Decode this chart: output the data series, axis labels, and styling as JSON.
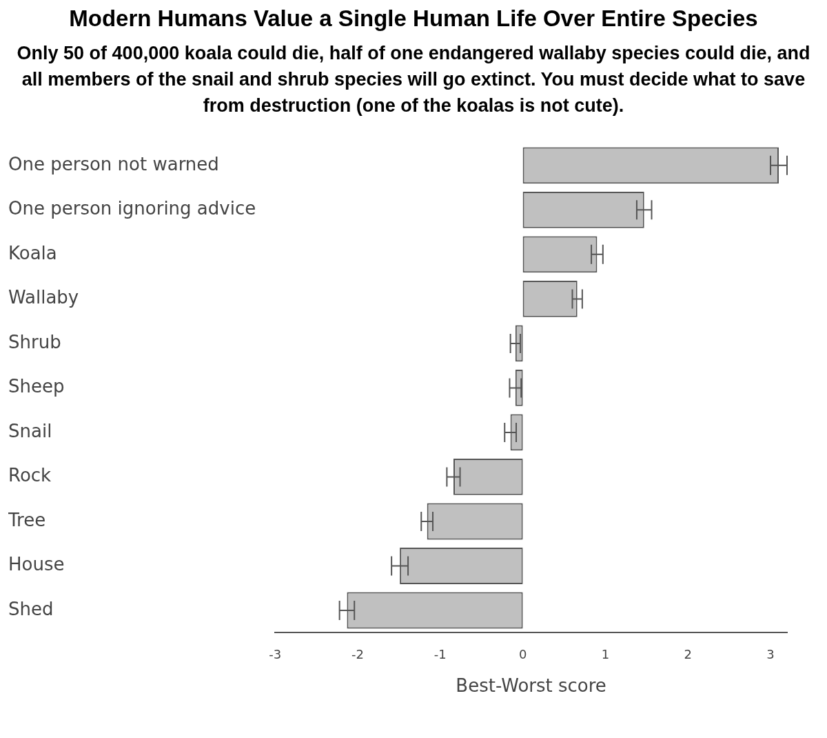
{
  "chart_data": {
    "type": "bar",
    "orientation": "horizontal",
    "title": "Modern Humans Value a Single Human Life Over Entire Species",
    "subtitle": "Only 50 of 400,000 koala could die, half of one endangered wallaby species could die, and all members of the snail and shrub species will go extinct. You must decide what to save from destruction (one of the koalas is not cute).",
    "xlabel": "Best-Worst score",
    "categories": [
      "One person not warned",
      "One person ignoring advice",
      "Koala",
      "Wallaby",
      "Shrub",
      "Sheep",
      "Snail",
      "Rock",
      "Tree",
      "House",
      "Shed"
    ],
    "values": [
      3.1,
      1.47,
      0.9,
      0.66,
      -0.09,
      -0.09,
      -0.15,
      -0.84,
      -1.16,
      -1.49,
      -2.13
    ],
    "errors": [
      0.1,
      0.09,
      0.07,
      0.06,
      0.06,
      0.07,
      0.07,
      0.08,
      0.07,
      0.1,
      0.09
    ],
    "color": "#c0c0c0",
    "xlim": [
      -3,
      3.2
    ],
    "xticks": [
      -3,
      -2,
      -1,
      0,
      1,
      2,
      3
    ],
    "grid": false,
    "legend": false
  }
}
